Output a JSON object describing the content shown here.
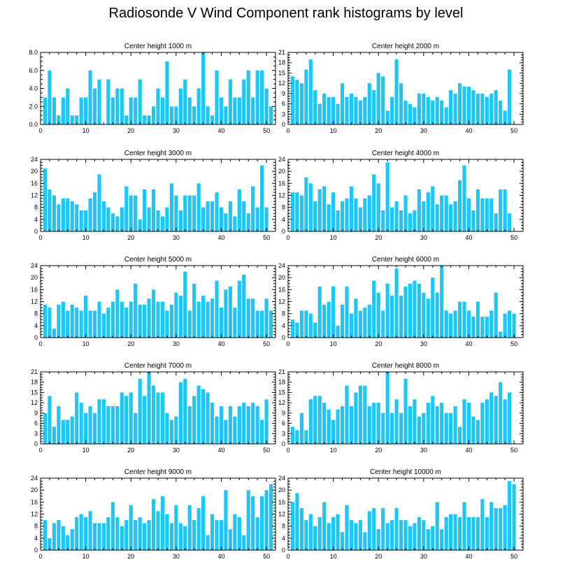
{
  "title": "Radiosonde V Wind Component rank histograms by level",
  "colors": {
    "bar": "#1ec6f5",
    "axis": "#000000",
    "background": "#ffffff"
  },
  "chart_data": [
    {
      "type": "bar",
      "title": "Center height 1000 m",
      "xlim": [
        0,
        52
      ],
      "ylim": [
        0,
        8
      ],
      "xticks": [
        "0",
        "10",
        "20",
        "30",
        "40",
        "50"
      ],
      "yticks": [
        "0.0",
        "2.0",
        "4.0",
        "6.0",
        "8.0"
      ],
      "x": [
        1,
        2,
        3,
        4,
        5,
        6,
        7,
        8,
        9,
        10,
        11,
        12,
        13,
        14,
        15,
        16,
        17,
        18,
        19,
        20,
        21,
        22,
        23,
        24,
        25,
        26,
        27,
        28,
        29,
        30,
        31,
        32,
        33,
        34,
        35,
        36,
        37,
        38,
        39,
        40,
        41,
        42,
        43,
        44,
        45,
        46,
        47,
        48,
        49,
        50,
        51,
        52
      ],
      "values": [
        3,
        6,
        3,
        1,
        3,
        4,
        1,
        1,
        3,
        3,
        6,
        4,
        5,
        0,
        5,
        3,
        4,
        4,
        1,
        3,
        3,
        5,
        1,
        1,
        2,
        4,
        3,
        7,
        2,
        2,
        4,
        5,
        3,
        2,
        4,
        8,
        2,
        1,
        6,
        3,
        2,
        5,
        3,
        3,
        5,
        6,
        3,
        6,
        6,
        4,
        2,
        0
      ]
    },
    {
      "type": "bar",
      "title": "Center height 2000 m",
      "xlim": [
        0,
        52
      ],
      "ylim": [
        0,
        21
      ],
      "xticks": [
        "0",
        "10",
        "20",
        "30",
        "40",
        "50"
      ],
      "yticks": [
        "0",
        "3",
        "6",
        "9",
        "12",
        "15",
        "18",
        "21"
      ],
      "x": [
        1,
        2,
        3,
        4,
        5,
        6,
        7,
        8,
        9,
        10,
        11,
        12,
        13,
        14,
        15,
        16,
        17,
        18,
        19,
        20,
        21,
        22,
        23,
        24,
        25,
        26,
        27,
        28,
        29,
        30,
        31,
        32,
        33,
        34,
        35,
        36,
        37,
        38,
        39,
        40,
        41,
        42,
        43,
        44,
        45,
        46,
        47,
        48,
        49,
        50,
        51,
        52
      ],
      "values": [
        14,
        13,
        12,
        16,
        19,
        10,
        6,
        9,
        8,
        8,
        6,
        12,
        8,
        9,
        8,
        7,
        8,
        12,
        10,
        15,
        14,
        4,
        8,
        19,
        12,
        7,
        6,
        5,
        9,
        9,
        8,
        7,
        8,
        7,
        5,
        10,
        9,
        12,
        11,
        11,
        10,
        9,
        9,
        8,
        9,
        10,
        7,
        4,
        16,
        0,
        0,
        0
      ]
    },
    {
      "type": "bar",
      "title": "Center height 3000 m",
      "xlim": [
        0,
        52
      ],
      "ylim": [
        0,
        24
      ],
      "xticks": [
        "0",
        "10",
        "20",
        "30",
        "40",
        "50"
      ],
      "yticks": [
        "0",
        "4",
        "8",
        "12",
        "16",
        "20",
        "24"
      ],
      "x": [
        1,
        2,
        3,
        4,
        5,
        6,
        7,
        8,
        9,
        10,
        11,
        12,
        13,
        14,
        15,
        16,
        17,
        18,
        19,
        20,
        21,
        22,
        23,
        24,
        25,
        26,
        27,
        28,
        29,
        30,
        31,
        32,
        33,
        34,
        35,
        36,
        37,
        38,
        39,
        40,
        41,
        42,
        43,
        44,
        45,
        46,
        47,
        48,
        49,
        50,
        51,
        52
      ],
      "values": [
        21,
        14,
        12,
        9,
        11,
        11,
        10,
        9,
        7,
        7,
        11,
        13,
        19,
        10,
        8,
        6,
        5,
        8,
        15,
        12,
        12,
        4,
        14,
        8,
        14,
        7,
        5,
        8,
        16,
        12,
        7,
        12,
        12,
        12,
        16,
        8,
        10,
        10,
        13,
        8,
        6,
        10,
        5,
        14,
        10,
        6,
        15,
        8,
        22,
        8,
        0,
        0
      ]
    },
    {
      "type": "bar",
      "title": "Center height 4000 m",
      "xlim": [
        0,
        52
      ],
      "ylim": [
        0,
        24
      ],
      "xticks": [
        "0",
        "10",
        "20",
        "30",
        "40",
        "50"
      ],
      "yticks": [
        "0",
        "4",
        "8",
        "12",
        "16",
        "20",
        "24"
      ],
      "x": [
        1,
        2,
        3,
        4,
        5,
        6,
        7,
        8,
        9,
        10,
        11,
        12,
        13,
        14,
        15,
        16,
        17,
        18,
        19,
        20,
        21,
        22,
        23,
        24,
        25,
        26,
        27,
        28,
        29,
        30,
        31,
        32,
        33,
        34,
        35,
        36,
        37,
        38,
        39,
        40,
        41,
        42,
        43,
        44,
        45,
        46,
        47,
        48,
        49,
        50,
        51,
        52
      ],
      "values": [
        13,
        13,
        12,
        18,
        16,
        10,
        14,
        15,
        9,
        13,
        7,
        10,
        11,
        15,
        11,
        8,
        11,
        12,
        19,
        16,
        7,
        23,
        8,
        10,
        7,
        12,
        6,
        7,
        14,
        10,
        13,
        15,
        9,
        12,
        12,
        9,
        10,
        17,
        22,
        11,
        7,
        14,
        11,
        11,
        11,
        6,
        14,
        14,
        6,
        0,
        0,
        0
      ]
    },
    {
      "type": "bar",
      "title": "Center height 5000 m",
      "xlim": [
        0,
        52
      ],
      "ylim": [
        0,
        24
      ],
      "xticks": [
        "0",
        "10",
        "20",
        "30",
        "40",
        "50"
      ],
      "yticks": [
        "0",
        "4",
        "8",
        "12",
        "16",
        "20",
        "24"
      ],
      "x": [
        1,
        2,
        3,
        4,
        5,
        6,
        7,
        8,
        9,
        10,
        11,
        12,
        13,
        14,
        15,
        16,
        17,
        18,
        19,
        20,
        21,
        22,
        23,
        24,
        25,
        26,
        27,
        28,
        29,
        30,
        31,
        32,
        33,
        34,
        35,
        36,
        37,
        38,
        39,
        40,
        41,
        42,
        43,
        44,
        45,
        46,
        47,
        48,
        49,
        50,
        51,
        52
      ],
      "values": [
        11,
        10,
        3,
        11,
        12,
        9,
        11,
        10,
        9,
        14,
        9,
        9,
        12,
        8,
        10,
        12,
        16,
        12,
        10,
        12,
        18,
        11,
        11,
        13,
        16,
        12,
        12,
        9,
        11,
        15,
        14,
        22,
        9,
        18,
        12,
        14,
        12,
        13,
        19,
        10,
        16,
        17,
        10,
        19,
        21,
        13,
        13,
        9,
        9,
        13,
        9,
        0
      ]
    },
    {
      "type": "bar",
      "title": "Center height 6000 m",
      "xlim": [
        0,
        52
      ],
      "ylim": [
        0,
        24
      ],
      "xticks": [
        "0",
        "10",
        "20",
        "30",
        "40",
        "50"
      ],
      "yticks": [
        "0",
        "4",
        "8",
        "12",
        "16",
        "20",
        "24"
      ],
      "x": [
        1,
        2,
        3,
        4,
        5,
        6,
        7,
        8,
        9,
        10,
        11,
        12,
        13,
        14,
        15,
        16,
        17,
        18,
        19,
        20,
        21,
        22,
        23,
        24,
        25,
        26,
        27,
        28,
        29,
        30,
        31,
        32,
        33,
        34,
        35,
        36,
        37,
        38,
        39,
        40,
        41,
        42,
        43,
        44,
        45,
        46,
        47,
        48,
        49,
        50,
        51,
        52
      ],
      "values": [
        6,
        5,
        9,
        9,
        8,
        5,
        17,
        11,
        12,
        17,
        4,
        11,
        17,
        8,
        13,
        9,
        10,
        11,
        19,
        15,
        9,
        18,
        14,
        23,
        14,
        17,
        18,
        19,
        18,
        15,
        13,
        20,
        15,
        24,
        9,
        8,
        9,
        12,
        12,
        9,
        7,
        12,
        7,
        7,
        9,
        15,
        2,
        8,
        9,
        8,
        0,
        0
      ]
    },
    {
      "type": "bar",
      "title": "Center height 7000 m",
      "xlim": [
        0,
        52
      ],
      "ylim": [
        0,
        21
      ],
      "xticks": [
        "0",
        "10",
        "20",
        "30",
        "40",
        "50"
      ],
      "yticks": [
        "0",
        "3",
        "6",
        "9",
        "12",
        "15",
        "18",
        "21"
      ],
      "x": [
        1,
        2,
        3,
        4,
        5,
        6,
        7,
        8,
        9,
        10,
        11,
        12,
        13,
        14,
        15,
        16,
        17,
        18,
        19,
        20,
        21,
        22,
        23,
        24,
        25,
        26,
        27,
        28,
        29,
        30,
        31,
        32,
        33,
        34,
        35,
        36,
        37,
        38,
        39,
        40,
        41,
        42,
        43,
        44,
        45,
        46,
        47,
        48,
        49,
        50,
        51,
        52
      ],
      "values": [
        9,
        14,
        5,
        11,
        7,
        7,
        8,
        15,
        12,
        9,
        11,
        9,
        13,
        13,
        11,
        11,
        11,
        15,
        14,
        15,
        9,
        19,
        14,
        21,
        17,
        15,
        15,
        9,
        7,
        8,
        18,
        19,
        11,
        14,
        17,
        16,
        15,
        12,
        8,
        11,
        7,
        11,
        8,
        11,
        12,
        11,
        12,
        11,
        7,
        13,
        0,
        0
      ]
    },
    {
      "type": "bar",
      "title": "Center height 8000 m",
      "xlim": [
        0,
        52
      ],
      "ylim": [
        0,
        21
      ],
      "xticks": [
        "0",
        "10",
        "20",
        "30",
        "40",
        "50"
      ],
      "yticks": [
        "0",
        "3",
        "6",
        "9",
        "12",
        "15",
        "18",
        "21"
      ],
      "x": [
        1,
        2,
        3,
        4,
        5,
        6,
        7,
        8,
        9,
        10,
        11,
        12,
        13,
        14,
        15,
        16,
        17,
        18,
        19,
        20,
        21,
        22,
        23,
        24,
        25,
        26,
        27,
        28,
        29,
        30,
        31,
        32,
        33,
        34,
        35,
        36,
        37,
        38,
        39,
        40,
        41,
        42,
        43,
        44,
        45,
        46,
        47,
        48,
        49,
        50,
        51,
        52
      ],
      "values": [
        5,
        4,
        9,
        4,
        13,
        14,
        14,
        12,
        10,
        7,
        10,
        11,
        17,
        11,
        15,
        17,
        17,
        11,
        12,
        12,
        9,
        21,
        9,
        13,
        9,
        19,
        11,
        13,
        8,
        9,
        12,
        14,
        11,
        12,
        9,
        9,
        11,
        5,
        13,
        12,
        8,
        7,
        12,
        13,
        15,
        14,
        18,
        13,
        15,
        0,
        0,
        0
      ]
    },
    {
      "type": "bar",
      "title": "Center height 9000 m",
      "xlim": [
        0,
        52
      ],
      "ylim": [
        0,
        24
      ],
      "xticks": [
        "0",
        "10",
        "20",
        "30",
        "40",
        "50"
      ],
      "yticks": [
        "0",
        "4",
        "8",
        "12",
        "16",
        "20",
        "24"
      ],
      "x": [
        1,
        2,
        3,
        4,
        5,
        6,
        7,
        8,
        9,
        10,
        11,
        12,
        13,
        14,
        15,
        16,
        17,
        18,
        19,
        20,
        21,
        22,
        23,
        24,
        25,
        26,
        27,
        28,
        29,
        30,
        31,
        32,
        33,
        34,
        35,
        36,
        37,
        38,
        39,
        40,
        41,
        42,
        43,
        44,
        45,
        46,
        47,
        48,
        49,
        50,
        51,
        52
      ],
      "values": [
        10,
        4,
        9,
        10,
        8,
        5,
        7,
        11,
        12,
        11,
        13,
        9,
        9,
        9,
        11,
        16,
        11,
        8,
        10,
        15,
        10,
        11,
        9,
        10,
        17,
        13,
        18,
        12,
        9,
        15,
        9,
        8,
        15,
        10,
        14,
        18,
        5,
        12,
        10,
        10,
        20,
        7,
        12,
        11,
        5,
        20,
        18,
        11,
        18,
        20,
        22,
        0
      ]
    },
    {
      "type": "bar",
      "title": "Center height 10000 m",
      "xlim": [
        0,
        52
      ],
      "ylim": [
        0,
        24
      ],
      "xticks": [
        "0",
        "10",
        "20",
        "30",
        "40",
        "50"
      ],
      "yticks": [
        "0",
        "4",
        "8",
        "12",
        "16",
        "20",
        "24"
      ],
      "x": [
        1,
        2,
        3,
        4,
        5,
        6,
        7,
        8,
        9,
        10,
        11,
        12,
        13,
        14,
        15,
        16,
        17,
        18,
        19,
        20,
        21,
        22,
        23,
        24,
        25,
        26,
        27,
        28,
        29,
        30,
        31,
        32,
        33,
        34,
        35,
        36,
        37,
        38,
        39,
        40,
        41,
        42,
        43,
        44,
        45,
        46,
        47,
        48,
        49,
        50,
        51,
        52
      ],
      "values": [
        16,
        19,
        14,
        10,
        12,
        8,
        11,
        16,
        9,
        11,
        12,
        6,
        15,
        10,
        9,
        10,
        6,
        13,
        14,
        7,
        14,
        9,
        10,
        14,
        10,
        10,
        8,
        9,
        11,
        10,
        7,
        8,
        16,
        7,
        11,
        12,
        12,
        11,
        16,
        11,
        11,
        11,
        17,
        11,
        16,
        14,
        14,
        15,
        23,
        22,
        0,
        0
      ]
    }
  ]
}
